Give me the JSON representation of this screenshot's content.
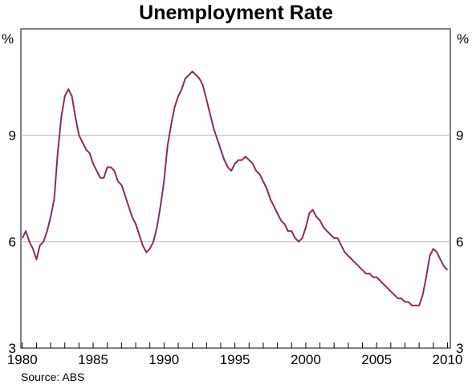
{
  "chart_data": {
    "type": "line",
    "title": "Unemployment Rate",
    "left_unit": "%",
    "right_unit": "%",
    "source": "Source: ABS",
    "xlim": [
      1979.9,
      2010.2
    ],
    "ylim": [
      3,
      12
    ],
    "y_ticks": [
      3,
      6,
      9
    ],
    "x_ticks": [
      1980,
      1985,
      1990,
      1995,
      2000,
      2005,
      2010
    ],
    "grid": "horizontal",
    "line_color": "#8b2a62",
    "series": [
      {
        "x": [
          1980.0,
          1980.25,
          1980.5,
          1980.75,
          1981.0,
          1981.25,
          1981.5,
          1981.75,
          1982.0,
          1982.25,
          1982.5,
          1982.75,
          1983.0,
          1983.25,
          1983.5,
          1983.75,
          1984.0,
          1984.25,
          1984.5,
          1984.75,
          1985.0,
          1985.25,
          1985.5,
          1985.75,
          1986.0,
          1986.25,
          1986.5,
          1986.75,
          1987.0,
          1987.25,
          1987.5,
          1987.75,
          1988.0,
          1988.25,
          1988.5,
          1988.75,
          1989.0,
          1989.25,
          1989.5,
          1989.75,
          1990.0,
          1990.25,
          1990.5,
          1990.75,
          1991.0,
          1991.25,
          1991.5,
          1991.75,
          1992.0,
          1992.25,
          1992.5,
          1992.75,
          1993.0,
          1993.25,
          1993.5,
          1993.75,
          1994.0,
          1994.25,
          1994.5,
          1994.75,
          1995.0,
          1995.25,
          1995.5,
          1995.75,
          1996.0,
          1996.25,
          1996.5,
          1996.75,
          1997.0,
          1997.25,
          1997.5,
          1997.75,
          1998.0,
          1998.25,
          1998.5,
          1998.75,
          1999.0,
          1999.25,
          1999.5,
          1999.75,
          2000.0,
          2000.25,
          2000.5,
          2000.75,
          2001.0,
          2001.25,
          2001.5,
          2001.75,
          2002.0,
          2002.25,
          2002.5,
          2002.75,
          2003.0,
          2003.25,
          2003.5,
          2003.75,
          2004.0,
          2004.25,
          2004.5,
          2004.75,
          2005.0,
          2005.25,
          2005.5,
          2005.75,
          2006.0,
          2006.25,
          2006.5,
          2006.75,
          2007.0,
          2007.25,
          2007.5,
          2007.75,
          2008.0,
          2008.25,
          2008.5,
          2008.75,
          2009.0,
          2009.25,
          2009.5,
          2009.75,
          2010.0
        ],
        "y": [
          6.1,
          6.3,
          6.0,
          5.8,
          5.5,
          5.9,
          6.0,
          6.3,
          6.7,
          7.2,
          8.5,
          9.5,
          10.1,
          10.3,
          10.1,
          9.5,
          9.0,
          8.8,
          8.6,
          8.5,
          8.2,
          8.0,
          7.8,
          7.8,
          8.1,
          8.1,
          8.0,
          7.7,
          7.6,
          7.3,
          7.0,
          6.7,
          6.5,
          6.2,
          5.9,
          5.7,
          5.8,
          6.0,
          6.4,
          7.0,
          7.7,
          8.7,
          9.3,
          9.8,
          10.1,
          10.3,
          10.6,
          10.7,
          10.8,
          10.7,
          10.6,
          10.4,
          10.0,
          9.6,
          9.2,
          8.9,
          8.6,
          8.3,
          8.1,
          8.0,
          8.2,
          8.3,
          8.3,
          8.4,
          8.3,
          8.2,
          8.0,
          7.9,
          7.7,
          7.5,
          7.2,
          7.0,
          6.8,
          6.6,
          6.5,
          6.3,
          6.3,
          6.1,
          6.0,
          6.1,
          6.4,
          6.8,
          6.9,
          6.7,
          6.6,
          6.4,
          6.3,
          6.2,
          6.1,
          6.1,
          5.9,
          5.7,
          5.6,
          5.5,
          5.4,
          5.3,
          5.2,
          5.1,
          5.1,
          5.0,
          5.0,
          4.9,
          4.8,
          4.7,
          4.6,
          4.5,
          4.4,
          4.4,
          4.3,
          4.3,
          4.2,
          4.2,
          4.2,
          4.5,
          5.0,
          5.6,
          5.8,
          5.7,
          5.5,
          5.3,
          5.2
        ]
      }
    ]
  }
}
